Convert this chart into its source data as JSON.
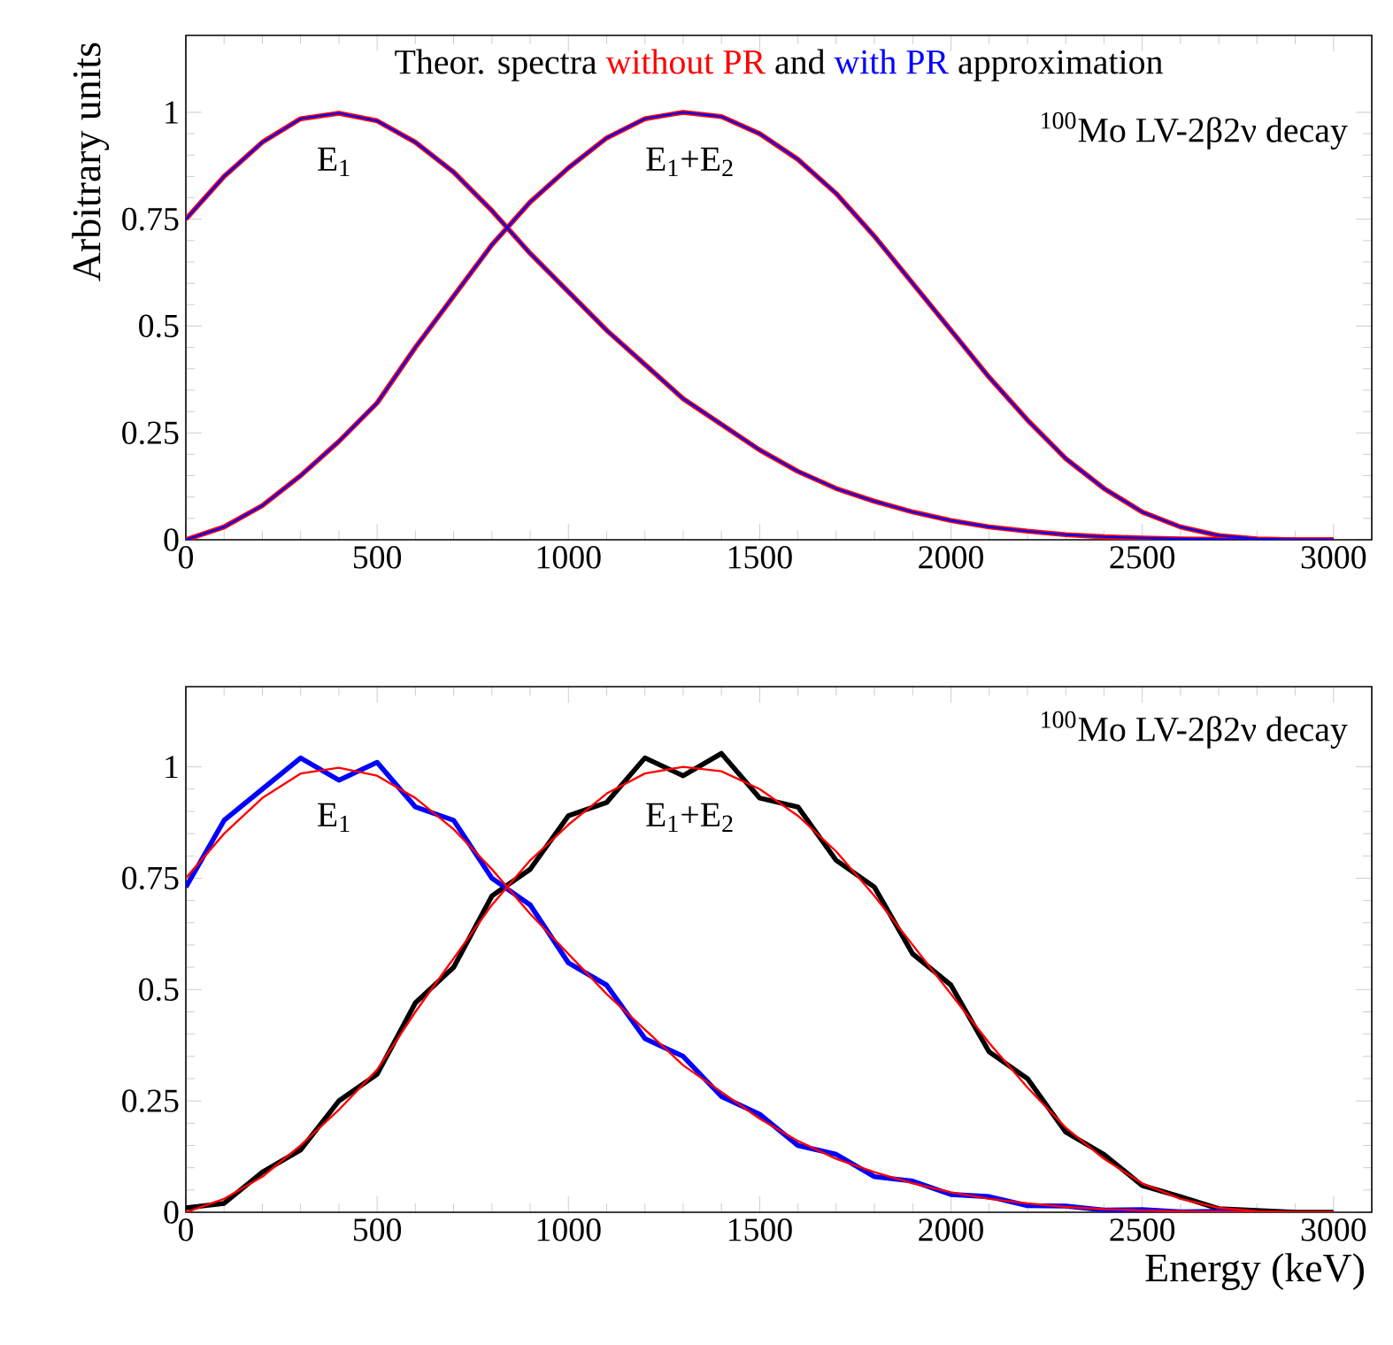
{
  "chart_data": [
    {
      "type": "line",
      "ylabel": "Arbitrary units",
      "x": [
        0,
        100,
        200,
        300,
        400,
        500,
        600,
        700,
        800,
        900,
        1000,
        1100,
        1200,
        1300,
        1400,
        1500,
        1600,
        1700,
        1800,
        1900,
        2000,
        2100,
        2200,
        2300,
        2400,
        2500,
        2600,
        2700,
        2800,
        2900,
        3000
      ],
      "series": [
        {
          "name": "without PR",
          "color": "#ff0000",
          "values": [
            0.75,
            0.85,
            0.93,
            0.985,
            0.998,
            0.98,
            0.93,
            0.86,
            0.77,
            0.67,
            0.58,
            0.49,
            0.41,
            0.33,
            0.27,
            0.21,
            0.16,
            0.12,
            0.09,
            0.065,
            0.045,
            0.03,
            0.02,
            0.012,
            0.007,
            0.004,
            0.002,
            0.001,
            0,
            0,
            0
          ]
        },
        {
          "color": "#ff0000",
          "values": [
            0,
            0.03,
            0.08,
            0.15,
            0.23,
            0.32,
            0.45,
            0.57,
            0.69,
            0.79,
            0.87,
            0.94,
            0.985,
            1.0,
            0.99,
            0.95,
            0.89,
            0.81,
            0.71,
            0.6,
            0.49,
            0.38,
            0.28,
            0.19,
            0.12,
            0.065,
            0.03,
            0.01,
            0.002,
            0,
            0
          ]
        },
        {
          "name": "with PR",
          "color": "#0000ff",
          "values": [
            0.75,
            0.85,
            0.93,
            0.985,
            0.998,
            0.98,
            0.93,
            0.86,
            0.77,
            0.67,
            0.58,
            0.49,
            0.41,
            0.33,
            0.27,
            0.21,
            0.16,
            0.12,
            0.09,
            0.065,
            0.045,
            0.03,
            0.02,
            0.012,
            0.007,
            0.004,
            0.002,
            0.001,
            0,
            0,
            0
          ]
        },
        {
          "color": "#0000ff",
          "values": [
            0,
            0.03,
            0.08,
            0.15,
            0.23,
            0.32,
            0.45,
            0.57,
            0.69,
            0.79,
            0.87,
            0.94,
            0.985,
            1.0,
            0.99,
            0.95,
            0.89,
            0.81,
            0.71,
            0.6,
            0.49,
            0.38,
            0.28,
            0.19,
            0.12,
            0.065,
            0.03,
            0.01,
            0.002,
            0,
            0
          ]
        }
      ],
      "annotations": [
        "Theor. spectra",
        "and",
        "approximation",
        "E$_{1}$",
        "E$_{1}$+E$_{2}$",
        "$^{100}$Mo LV-2β2ν decay"
      ],
      "xlim": [
        0,
        3100
      ],
      "ylim": [
        0,
        1.18
      ],
      "xticks": [
        0,
        500,
        1000,
        1500,
        2000,
        2500,
        3000
      ],
      "yticks": [
        0,
        0.25,
        0.5,
        0.75,
        1
      ]
    },
    {
      "type": "line",
      "xlabel": "Energy (keV)",
      "x": [
        0,
        100,
        200,
        300,
        400,
        500,
        600,
        700,
        800,
        900,
        1000,
        1100,
        1200,
        1300,
        1400,
        1500,
        1600,
        1700,
        1800,
        1900,
        2000,
        2100,
        2200,
        2300,
        2400,
        2500,
        2600,
        2700,
        2800,
        2900,
        3000
      ],
      "series": [
        {
          "color": "#000000",
          "values": [
            0.01,
            0.02,
            0.09,
            0.14,
            0.25,
            0.31,
            0.47,
            0.55,
            0.71,
            0.77,
            0.89,
            0.92,
            1.02,
            0.98,
            1.03,
            0.93,
            0.91,
            0.79,
            0.73,
            0.58,
            0.51,
            0.36,
            0.3,
            0.18,
            0.13,
            0.06,
            0.035,
            0.008,
            0.004,
            0,
            0
          ]
        },
        {
          "color": "#0000ff",
          "values": [
            0.73,
            0.88,
            0.95,
            1.02,
            0.97,
            1.01,
            0.91,
            0.88,
            0.75,
            0.69,
            0.56,
            0.51,
            0.39,
            0.35,
            0.26,
            0.22,
            0.15,
            0.13,
            0.08,
            0.07,
            0.04,
            0.035,
            0.015,
            0.014,
            0.005,
            0.006,
            0.001,
            0.002,
            0,
            null,
            null
          ]
        },
        {
          "color": "#ff0000",
          "values": [
            0.75,
            0.85,
            0.93,
            0.985,
            0.998,
            0.98,
            0.93,
            0.86,
            0.77,
            0.67,
            0.58,
            0.49,
            0.41,
            0.33,
            0.27,
            0.21,
            0.16,
            0.12,
            0.09,
            0.065,
            0.045,
            0.03,
            0.02,
            0.012,
            0.007,
            0.004,
            0.002,
            0.001,
            0,
            0,
            0
          ]
        },
        {
          "color": "#ff0000",
          "values": [
            0,
            0.03,
            0.08,
            0.15,
            0.23,
            0.32,
            0.45,
            0.57,
            0.69,
            0.79,
            0.87,
            0.94,
            0.985,
            1.0,
            0.99,
            0.95,
            0.89,
            0.81,
            0.71,
            0.6,
            0.49,
            0.38,
            0.28,
            0.19,
            0.12,
            0.065,
            0.03,
            0.01,
            0.002,
            0,
            0
          ]
        }
      ],
      "annotations": [
        "E$_{1}$",
        "E$_{1}$+E$_{2}$",
        "$^{100}$Mo LV-2β2ν decay"
      ],
      "xlim": [
        0,
        3100
      ],
      "ylim": [
        0,
        1.18
      ],
      "xticks": [
        0,
        500,
        1000,
        1500,
        2000,
        2500,
        3000
      ],
      "yticks": [
        0,
        0.25,
        0.5,
        0.75,
        1
      ]
    }
  ]
}
